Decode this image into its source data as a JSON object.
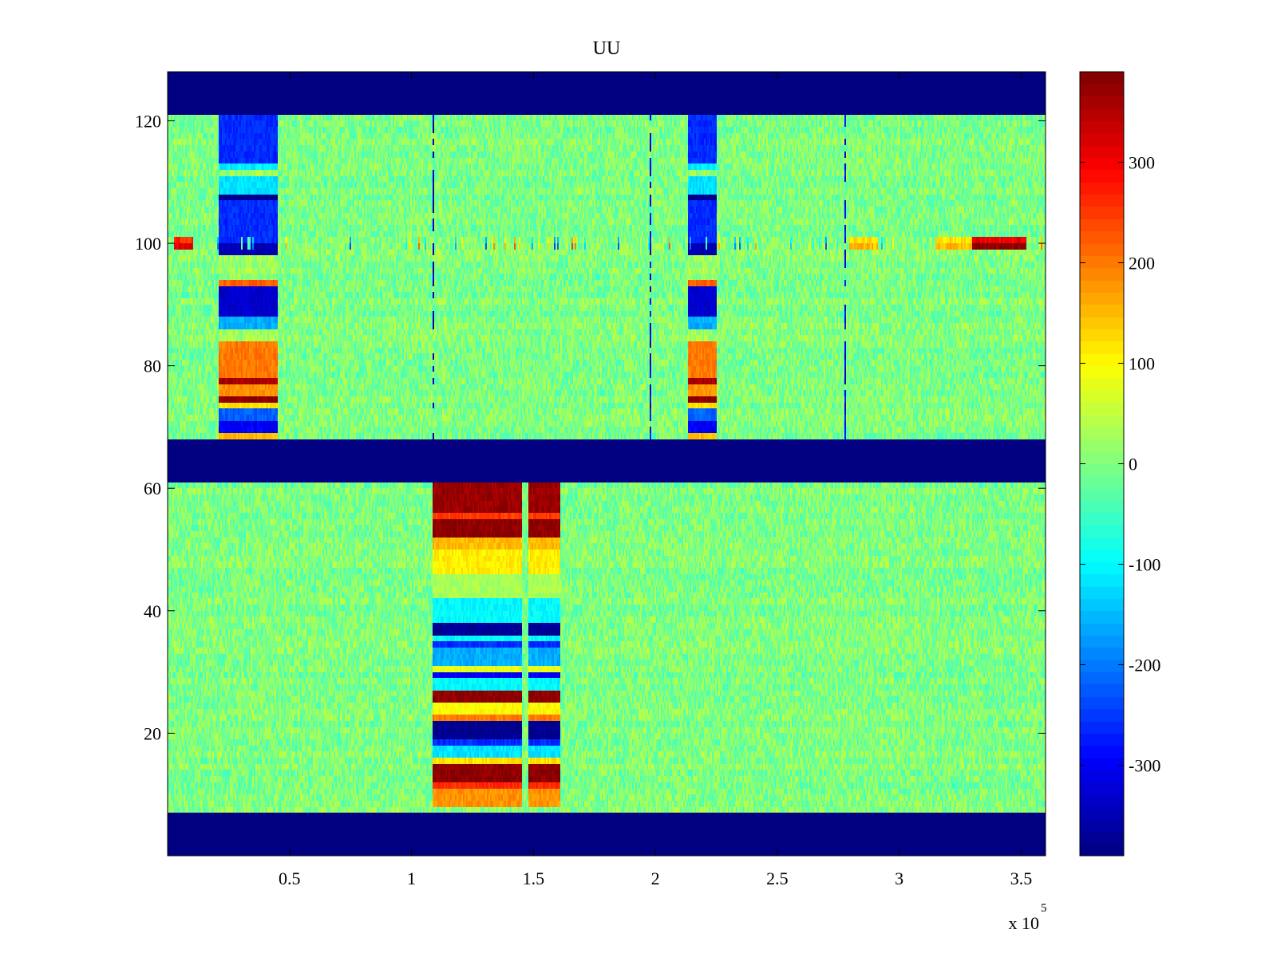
{
  "chart_data": {
    "type": "heatmap",
    "title": "UU",
    "xlabel": "",
    "ylabel": "",
    "x_exponent_label": "x 10",
    "x_exponent_power": "5",
    "xlim": [
      0,
      360000
    ],
    "ylim": [
      0,
      128
    ],
    "clim": [
      -390,
      390
    ],
    "x_ticks": [
      {
        "value": 50000,
        "label": "0.5"
      },
      {
        "value": 100000,
        "label": "1"
      },
      {
        "value": 150000,
        "label": "1.5"
      },
      {
        "value": 200000,
        "label": "2"
      },
      {
        "value": 250000,
        "label": "2.5"
      },
      {
        "value": 300000,
        "label": "3"
      },
      {
        "value": 350000,
        "label": "3.5"
      }
    ],
    "y_ticks": [
      {
        "value": 20,
        "label": "20"
      },
      {
        "value": 40,
        "label": "40"
      },
      {
        "value": 60,
        "label": "60"
      },
      {
        "value": 80,
        "label": "80"
      },
      {
        "value": 100,
        "label": "100"
      },
      {
        "value": 120,
        "label": "120"
      }
    ],
    "colorbar_ticks": [
      {
        "value": 300,
        "label": "300"
      },
      {
        "value": 200,
        "label": "200"
      },
      {
        "value": 100,
        "label": "100"
      },
      {
        "value": 0,
        "label": "0"
      },
      {
        "value": -100,
        "label": "-100"
      },
      {
        "value": -200,
        "label": "-200"
      },
      {
        "value": -300,
        "label": "-300"
      }
    ],
    "colormap": "jet",
    "colormap_stops": [
      "#00007f",
      "#0000ff",
      "#00ffff",
      "#7fff7f",
      "#ffff00",
      "#ff0000",
      "#7f0000"
    ],
    "background_noise": {
      "mean": 0,
      "amplitude": 45
    },
    "empty_bands": [
      {
        "y_range": [
          0,
          7
        ],
        "value": -390
      },
      {
        "y_range": [
          61,
          68
        ],
        "value": -390
      },
      {
        "y_range": [
          121,
          128
        ],
        "value": -390
      }
    ],
    "events": [
      {
        "x_range": [
          21000,
          45000
        ],
        "y_range": [
          68,
          121
        ],
        "rows": [
          {
            "y": [
              68,
              69
            ],
            "value": 150
          },
          {
            "y": [
              69,
              71
            ],
            "value": -300
          },
          {
            "y": [
              71,
              73
            ],
            "value": -220
          },
          {
            "y": [
              73,
              74
            ],
            "value": 120
          },
          {
            "y": [
              74,
              75
            ],
            "value": 380
          },
          {
            "y": [
              75,
              77
            ],
            "value": 180
          },
          {
            "y": [
              77,
              78
            ],
            "value": 360
          },
          {
            "y": [
              78,
              84
            ],
            "value": 200
          },
          {
            "y": [
              86,
              88
            ],
            "value": -160
          },
          {
            "y": [
              88,
              93
            ],
            "value": -330
          },
          {
            "y": [
              93,
              94
            ],
            "value": 220
          },
          {
            "y": [
              98,
              100
            ],
            "value": -350
          },
          {
            "y": [
              100,
              107
            ],
            "value": -260
          },
          {
            "y": [
              107,
              108
            ],
            "value": -380
          },
          {
            "y": [
              108,
              111
            ],
            "value": -120
          },
          {
            "y": [
              112,
              113
            ],
            "value": -110
          },
          {
            "y": [
              113,
              121
            ],
            "value": -260
          }
        ]
      },
      {
        "x_range": [
          214000,
          225000
        ],
        "y_range": [
          68,
          121
        ],
        "rows": [
          {
            "y": [
              68,
              69
            ],
            "value": 150
          },
          {
            "y": [
              69,
              71
            ],
            "value": -300
          },
          {
            "y": [
              71,
              73
            ],
            "value": -220
          },
          {
            "y": [
              73,
              74
            ],
            "value": 120
          },
          {
            "y": [
              74,
              75
            ],
            "value": 380
          },
          {
            "y": [
              75,
              77
            ],
            "value": 180
          },
          {
            "y": [
              77,
              78
            ],
            "value": 360
          },
          {
            "y": [
              78,
              84
            ],
            "value": 200
          },
          {
            "y": [
              86,
              88
            ],
            "value": -160
          },
          {
            "y": [
              88,
              93
            ],
            "value": -330
          },
          {
            "y": [
              93,
              94
            ],
            "value": 220
          },
          {
            "y": [
              98,
              100
            ],
            "value": -350
          },
          {
            "y": [
              100,
              107
            ],
            "value": -260
          },
          {
            "y": [
              107,
              108
            ],
            "value": -380
          },
          {
            "y": [
              108,
              111
            ],
            "value": -120
          },
          {
            "y": [
              112,
              113
            ],
            "value": -110
          },
          {
            "y": [
              113,
              121
            ],
            "value": -260
          }
        ]
      },
      {
        "x_range": [
          109000,
          145000
        ],
        "y_range": [
          8,
          61
        ],
        "rows": [
          {
            "y": [
              8,
              11
            ],
            "value": 180
          },
          {
            "y": [
              11,
              12
            ],
            "value": 260
          },
          {
            "y": [
              12,
              15
            ],
            "value": 380
          },
          {
            "y": [
              15,
              16
            ],
            "value": 120
          },
          {
            "y": [
              16,
              18
            ],
            "value": -120
          },
          {
            "y": [
              18,
              19
            ],
            "value": -260
          },
          {
            "y": [
              19,
              22
            ],
            "value": -380
          },
          {
            "y": [
              22,
              23
            ],
            "value": 200
          },
          {
            "y": [
              23,
              25
            ],
            "value": 100
          },
          {
            "y": [
              25,
              27
            ],
            "value": 380
          },
          {
            "y": [
              27,
              29
            ],
            "value": -100
          },
          {
            "y": [
              29,
              30
            ],
            "value": -300
          },
          {
            "y": [
              30,
              31
            ],
            "value": 80
          },
          {
            "y": [
              31,
              34
            ],
            "value": -160
          },
          {
            "y": [
              34,
              35
            ],
            "value": -260
          },
          {
            "y": [
              35,
              36
            ],
            "value": -100
          },
          {
            "y": [
              36,
              38
            ],
            "value": -370
          },
          {
            "y": [
              38,
              42
            ],
            "value": -100
          },
          {
            "y": [
              42,
              46
            ],
            "value": 30
          },
          {
            "y": [
              46,
              50
            ],
            "value": 110
          },
          {
            "y": [
              50,
              52
            ],
            "value": 150
          },
          {
            "y": [
              52,
              55
            ],
            "value": 380
          },
          {
            "y": [
              55,
              56
            ],
            "value": 250
          },
          {
            "y": [
              56,
              61
            ],
            "value": 370
          }
        ]
      },
      {
        "x_range": [
          148000,
          161000
        ],
        "y_range": [
          8,
          61
        ],
        "rows": [
          {
            "y": [
              8,
              11
            ],
            "value": 180
          },
          {
            "y": [
              11,
              12
            ],
            "value": 260
          },
          {
            "y": [
              12,
              15
            ],
            "value": 380
          },
          {
            "y": [
              15,
              16
            ],
            "value": 120
          },
          {
            "y": [
              16,
              18
            ],
            "value": -120
          },
          {
            "y": [
              18,
              19
            ],
            "value": -260
          },
          {
            "y": [
              19,
              22
            ],
            "value": -380
          },
          {
            "y": [
              22,
              23
            ],
            "value": 200
          },
          {
            "y": [
              23,
              25
            ],
            "value": 100
          },
          {
            "y": [
              25,
              27
            ],
            "value": 380
          },
          {
            "y": [
              27,
              29
            ],
            "value": -100
          },
          {
            "y": [
              29,
              30
            ],
            "value": -300
          },
          {
            "y": [
              30,
              31
            ],
            "value": 80
          },
          {
            "y": [
              31,
              34
            ],
            "value": -160
          },
          {
            "y": [
              34,
              35
            ],
            "value": -260
          },
          {
            "y": [
              35,
              36
            ],
            "value": -100
          },
          {
            "y": [
              36,
              38
            ],
            "value": -370
          },
          {
            "y": [
              38,
              42
            ],
            "value": -100
          },
          {
            "y": [
              42,
              46
            ],
            "value": 30
          },
          {
            "y": [
              46,
              50
            ],
            "value": 110
          },
          {
            "y": [
              50,
              52
            ],
            "value": 150
          },
          {
            "y": [
              52,
              55
            ],
            "value": 380
          },
          {
            "y": [
              55,
              56
            ],
            "value": 250
          },
          {
            "y": [
              56,
              61
            ],
            "value": 370
          }
        ]
      }
    ],
    "vertical_stripes": [
      {
        "x": 109000,
        "y_range": [
          68,
          121
        ],
        "value": -330
      },
      {
        "x": 198000,
        "y_range": [
          68,
          121
        ],
        "value": -300
      },
      {
        "x": 278000,
        "y_range": [
          68,
          121
        ],
        "value": -300
      }
    ],
    "channel_100_activity": [
      {
        "x_range": [
          3000,
          10000
        ],
        "value": 320
      },
      {
        "x_range": [
          280000,
          290000
        ],
        "value": 150
      },
      {
        "x_range": [
          315000,
          330000
        ],
        "value": 150
      },
      {
        "x_range": [
          330000,
          352000
        ],
        "value": 380
      }
    ]
  }
}
